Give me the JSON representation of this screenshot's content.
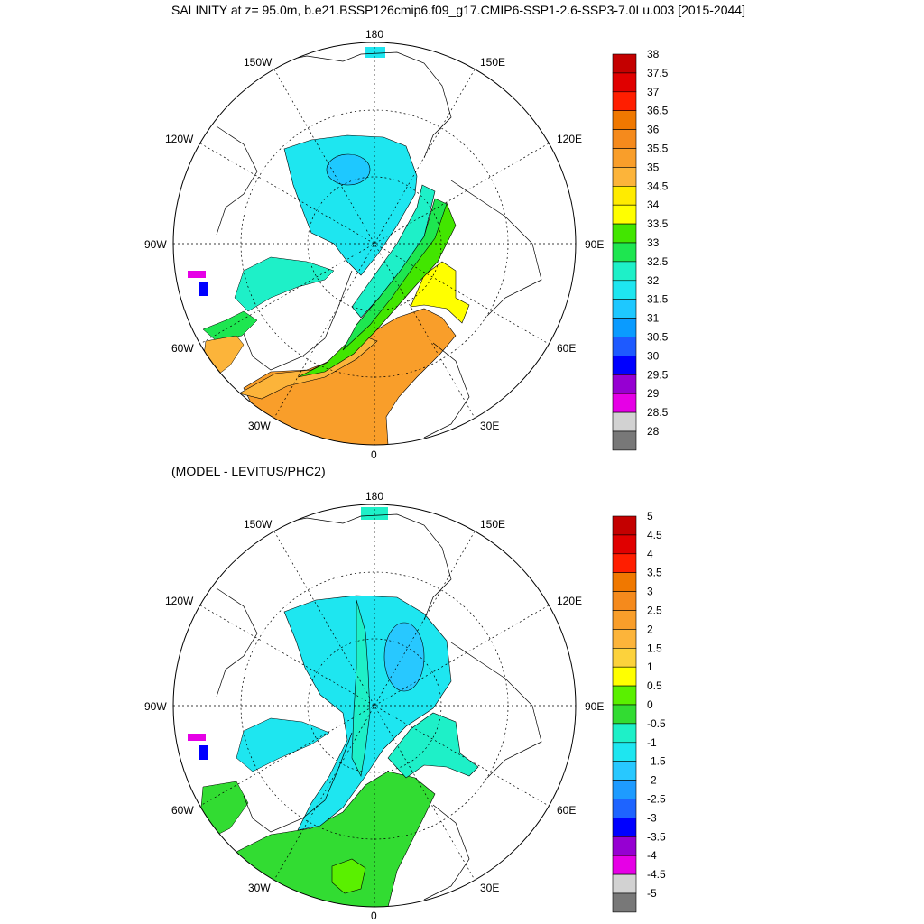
{
  "title": "SALINITY at z=  95.0m, b.e21.BSSP126cmip6.f09_g17.CMIP6-SSP1-2.6-SSP3-7.0Lu.003 [2015-2044]",
  "subtitle": "(MODEL - LEVITUS/PHC2)",
  "lon_labels": {
    "north": "180",
    "south": "0",
    "west": "90W",
    "east": "90E",
    "nw1": "150W",
    "nw2": "120W",
    "ne1": "150E",
    "ne2": "120E",
    "sw1": "60W",
    "sw2": "30W",
    "se1": "60E",
    "se2": "30E"
  },
  "chart_data": [
    {
      "type": "heatmap",
      "projection": "north polar stereographic",
      "field": "salinity",
      "depth_m": 95.0,
      "colorbar_labels": [
        "38",
        "37.5",
        "37",
        "36.5",
        "36",
        "35.5",
        "35",
        "34.5",
        "34",
        "33.5",
        "33",
        "32.5",
        "32",
        "31.5",
        "31",
        "30.5",
        "30",
        "29.5",
        "29",
        "28.5",
        "28"
      ],
      "colors": [
        "#c40000",
        "#e00000",
        "#ff1e00",
        "#f07800",
        "#f58a1c",
        "#f99e2a",
        "#fcb43a",
        "#ffeb00",
        "#ffff00",
        "#42e600",
        "#1ee650",
        "#1ef0c8",
        "#1ee6f0",
        "#1ec8ff",
        "#0a9bff",
        "#1e5aff",
        "#0000ff",
        "#9600d2",
        "#e600e6",
        "#d2d2d2",
        "#787878"
      ],
      "colorbar_position": "right",
      "gridlines": true
    },
    {
      "type": "heatmap",
      "projection": "north polar stereographic",
      "field": "salinity difference (model - Levitus/PHC2)",
      "colorbar_labels": [
        "5",
        "4.5",
        "4",
        "3.5",
        "3",
        "2.5",
        "2",
        "1.5",
        "1",
        "0.5",
        "0",
        "-0.5",
        "-1",
        "-1.5",
        "-2",
        "-2.5",
        "-3",
        "-3.5",
        "-4",
        "-4.5",
        "-5"
      ],
      "colors": [
        "#c40000",
        "#e00000",
        "#ff1e00",
        "#f07800",
        "#f58a1c",
        "#f99e2a",
        "#fcb43a",
        "#fcd23c",
        "#ffff00",
        "#5af000",
        "#32dc32",
        "#1ef0c8",
        "#1ee6f0",
        "#28c8ff",
        "#1e9bff",
        "#1e64ff",
        "#0000ff",
        "#9600d2",
        "#e600e6",
        "#d2d2d2",
        "#787878"
      ],
      "colorbar_position": "right",
      "gridlines": true
    }
  ]
}
